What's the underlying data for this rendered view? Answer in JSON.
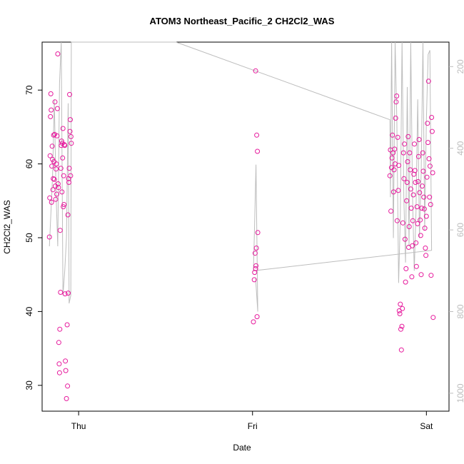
{
  "chart_data": {
    "type": "scatter",
    "title": "ATOM3 Northeast_Pacific_2 CH2Cl2_WAS",
    "xlabel": "Date",
    "ylabel": "CH2Cl2_WAS",
    "x_ticks": [
      {
        "label": "Thu",
        "x": 1.0
      },
      {
        "label": "Fri",
        "x": 2.0
      },
      {
        "label": "Sat",
        "x": 3.0
      }
    ],
    "xlim": [
      0.79,
      3.13
    ],
    "ylim": [
      26.5,
      76.5
    ],
    "y_ticks": [
      30,
      40,
      50,
      60,
      70
    ],
    "right_axis": {
      "ylim": [
        1044,
        140
      ],
      "ticks": [
        200,
        400,
        600,
        800,
        1000
      ],
      "color": "#bdbdbd"
    },
    "grid": false,
    "legend": "none",
    "point_color": "#e6199c",
    "line_color": "#bdbdbd",
    "series": [
      {
        "type": "points",
        "points": [
          [
            0.832,
            50.1
          ],
          [
            0.834,
            55.4
          ],
          [
            0.836,
            61.1
          ],
          [
            0.838,
            66.4
          ],
          [
            0.84,
            69.5
          ],
          [
            0.842,
            67.3
          ],
          [
            0.844,
            54.8
          ],
          [
            0.846,
            59.7
          ],
          [
            0.848,
            62.4
          ],
          [
            0.85,
            60.6
          ],
          [
            0.852,
            56.5
          ],
          [
            0.854,
            58.0
          ],
          [
            0.856,
            63.9
          ],
          [
            0.858,
            60.3
          ],
          [
            0.86,
            57.9
          ],
          [
            0.862,
            64.0
          ],
          [
            0.864,
            68.4
          ],
          [
            0.866,
            57.0
          ],
          [
            0.868,
            55.2
          ],
          [
            0.87,
            59.3
          ],
          [
            0.872,
            60.0
          ],
          [
            0.874,
            55.9
          ],
          [
            0.876,
            63.8
          ],
          [
            0.878,
            67.5
          ],
          [
            0.88,
            74.9
          ],
          [
            0.882,
            57.3
          ],
          [
            0.884,
            56.8
          ],
          [
            0.886,
            35.8
          ],
          [
            0.888,
            32.9
          ],
          [
            0.89,
            31.7
          ],
          [
            0.892,
            37.6
          ],
          [
            0.894,
            51.0
          ],
          [
            0.896,
            42.6
          ],
          [
            0.898,
            59.4
          ],
          [
            0.9,
            62.5
          ],
          [
            0.902,
            63.1
          ],
          [
            0.904,
            56.2
          ],
          [
            0.906,
            62.8
          ],
          [
            0.908,
            60.8
          ],
          [
            0.91,
            64.8
          ],
          [
            0.912,
            54.2
          ],
          [
            0.914,
            58.4
          ],
          [
            0.916,
            54.5
          ],
          [
            0.918,
            62.6
          ],
          [
            0.92,
            62.5
          ],
          [
            0.922,
            42.4
          ],
          [
            0.924,
            33.3
          ],
          [
            0.926,
            32.0
          ],
          [
            0.93,
            28.2
          ],
          [
            0.934,
            38.2
          ],
          [
            0.936,
            29.9
          ],
          [
            0.938,
            53.1
          ],
          [
            0.94,
            42.5
          ],
          [
            0.942,
            58.0
          ],
          [
            0.944,
            57.5
          ],
          [
            0.946,
            59.4
          ],
          [
            0.948,
            69.4
          ],
          [
            0.95,
            64.4
          ],
          [
            0.952,
            66.0
          ],
          [
            0.954,
            58.4
          ],
          [
            0.956,
            63.7
          ],
          [
            0.958,
            62.8
          ],
          [
            2.005,
            38.6
          ],
          [
            2.01,
            44.3
          ],
          [
            2.012,
            45.3
          ],
          [
            2.015,
            47.9
          ],
          [
            2.018,
            45.8
          ],
          [
            2.02,
            46.2
          ],
          [
            2.022,
            48.6
          ],
          [
            2.024,
            63.9
          ],
          [
            2.026,
            39.3
          ],
          [
            2.028,
            61.7
          ],
          [
            2.03,
            50.7
          ],
          [
            2.018,
            72.6
          ],
          [
            2.79,
            58.4
          ],
          [
            2.793,
            61.9
          ],
          [
            2.796,
            53.6
          ],
          [
            2.799,
            59.5
          ],
          [
            2.802,
            60.8
          ],
          [
            2.805,
            63.9
          ],
          [
            2.808,
            61.5
          ],
          [
            2.811,
            56.2
          ],
          [
            2.814,
            59.2
          ],
          [
            2.817,
            62.0
          ],
          [
            2.82,
            60.0
          ],
          [
            2.823,
            66.2
          ],
          [
            2.826,
            68.4
          ],
          [
            2.829,
            69.2
          ],
          [
            2.832,
            52.3
          ],
          [
            2.835,
            63.6
          ],
          [
            2.838,
            56.4
          ],
          [
            2.841,
            59.8
          ],
          [
            2.844,
            40.1
          ],
          [
            2.847,
            39.7
          ],
          [
            2.85,
            41.0
          ],
          [
            2.853,
            37.6
          ],
          [
            2.856,
            34.8
          ],
          [
            2.859,
            38.0
          ],
          [
            2.862,
            40.4
          ],
          [
            2.865,
            52.0
          ],
          [
            2.868,
            61.5
          ],
          [
            2.871,
            58.0
          ],
          [
            2.874,
            62.7
          ],
          [
            2.877,
            49.8
          ],
          [
            2.88,
            44.0
          ],
          [
            2.883,
            45.8
          ],
          [
            2.886,
            55.0
          ],
          [
            2.889,
            57.5
          ],
          [
            2.892,
            60.3
          ],
          [
            2.895,
            63.7
          ],
          [
            2.898,
            48.7
          ],
          [
            2.901,
            51.5
          ],
          [
            2.904,
            61.5
          ],
          [
            2.907,
            59.2
          ],
          [
            2.91,
            56.6
          ],
          [
            2.913,
            54.0
          ],
          [
            2.916,
            44.7
          ],
          [
            2.919,
            48.9
          ],
          [
            2.922,
            52.3
          ],
          [
            2.925,
            55.8
          ],
          [
            2.928,
            58.6
          ],
          [
            2.931,
            62.7
          ],
          [
            2.934,
            59.1
          ],
          [
            2.937,
            57.5
          ],
          [
            2.94,
            49.3
          ],
          [
            2.943,
            46.1
          ],
          [
            2.946,
            54.2
          ],
          [
            2.949,
            51.9
          ],
          [
            2.952,
            57.6
          ],
          [
            2.955,
            61.0
          ],
          [
            2.958,
            63.3
          ],
          [
            2.961,
            56.1
          ],
          [
            2.964,
            52.4
          ],
          [
            2.967,
            50.3
          ],
          [
            2.97,
            45.0
          ],
          [
            2.973,
            54.0
          ],
          [
            2.976,
            57.0
          ],
          [
            2.979,
            61.5
          ],
          [
            2.982,
            59.0
          ],
          [
            2.985,
            55.5
          ],
          [
            2.988,
            53.9
          ],
          [
            2.991,
            51.3
          ],
          [
            2.994,
            48.6
          ],
          [
            2.997,
            47.6
          ],
          [
            3.0,
            52.9
          ],
          [
            3.003,
            58.2
          ],
          [
            3.006,
            65.5
          ],
          [
            3.009,
            62.9
          ],
          [
            3.012,
            71.2
          ],
          [
            3.015,
            60.7
          ],
          [
            3.018,
            55.5
          ],
          [
            3.021,
            59.7
          ],
          [
            3.024,
            54.5
          ],
          [
            3.027,
            44.9
          ],
          [
            3.03,
            66.3
          ],
          [
            3.033,
            64.4
          ],
          [
            3.036,
            58.8
          ],
          [
            3.039,
            39.2
          ]
        ]
      },
      {
        "type": "line",
        "name": "",
        "axis": "right",
        "points": [
          [
            0.832,
            640
          ],
          [
            0.85,
            470
          ],
          [
            0.86,
            280
          ],
          [
            0.87,
            510
          ],
          [
            0.88,
            640
          ],
          [
            0.89,
            240
          ],
          [
            0.9,
            140
          ],
          [
            0.91,
            760
          ],
          [
            0.92,
            700
          ],
          [
            0.93,
            620
          ],
          [
            0.94,
            290
          ],
          [
            0.945,
            780
          ],
          [
            0.955,
            760
          ],
          [
            0.958,
            140
          ],
          [
            1.56,
            140
          ],
          [
            2.79,
            330
          ],
          [
            2.793,
            520
          ],
          [
            2.8,
            140
          ],
          [
            2.81,
            620
          ],
          [
            2.82,
            140
          ],
          [
            2.83,
            330
          ],
          [
            2.84,
            730
          ],
          [
            2.85,
            570
          ],
          [
            2.86,
            140
          ],
          [
            2.87,
            520
          ],
          [
            2.88,
            680
          ],
          [
            2.89,
            250
          ],
          [
            2.9,
            640
          ],
          [
            2.91,
            140
          ],
          [
            2.92,
            510
          ],
          [
            2.93,
            700
          ],
          [
            2.94,
            560
          ],
          [
            2.95,
            280
          ],
          [
            2.96,
            620
          ],
          [
            2.97,
            460
          ],
          [
            2.98,
            140
          ],
          [
            2.99,
            600
          ],
          [
            3.0,
            330
          ],
          [
            3.01,
            170
          ],
          [
            3.02,
            160
          ],
          [
            3.03,
            650
          ],
          [
            2.005,
            700
          ],
          [
            2.01,
            620
          ],
          [
            2.02,
            440
          ],
          [
            2.03,
            800
          ],
          [
            2.018,
            720
          ]
        ]
      }
    ]
  }
}
